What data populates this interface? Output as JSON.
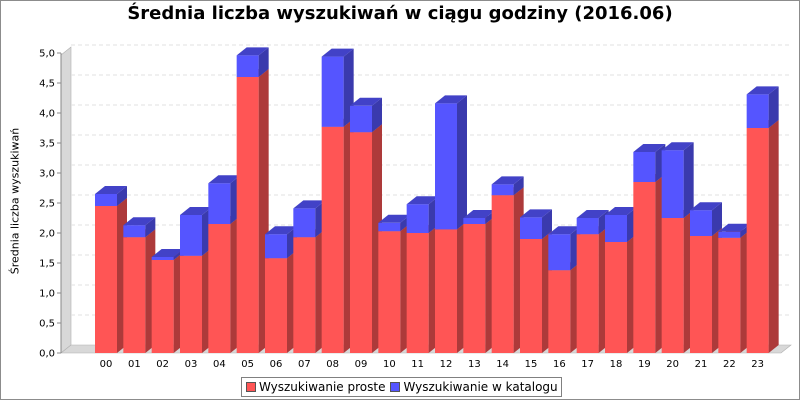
{
  "chart_data": {
    "type": "bar",
    "stacked": true,
    "three_d": true,
    "title": "Średnia liczba wyszukiwań w ciągu godziny (2016.06)",
    "xlabel": "",
    "ylabel": "Średnia liczba wyszukiwań",
    "ylim": [
      0,
      5
    ],
    "yticks": [
      "0,0",
      "0,5",
      "1,0",
      "1,5",
      "2,0",
      "2,5",
      "3,0",
      "3,5",
      "4,0",
      "4,5",
      "5,0"
    ],
    "grid": true,
    "legend_position": "bottom",
    "categories": [
      "00",
      "01",
      "02",
      "03",
      "04",
      "05",
      "06",
      "07",
      "08",
      "09",
      "10",
      "11",
      "12",
      "13",
      "14",
      "15",
      "16",
      "17",
      "18",
      "19",
      "20",
      "21",
      "22",
      "23"
    ],
    "series": [
      {
        "name": "Wyszukiwanie proste",
        "color": "#ff5555",
        "values": [
          2.45,
          1.93,
          1.55,
          1.62,
          2.15,
          4.6,
          1.58,
          1.93,
          3.77,
          3.68,
          2.03,
          2.0,
          2.06,
          2.15,
          2.63,
          1.9,
          1.38,
          1.98,
          1.85,
          2.85,
          2.25,
          1.95,
          1.92,
          3.75
        ]
      },
      {
        "name": "Wyszukiwanie w katalogu",
        "color": "#5555ff",
        "values": [
          0.2,
          0.2,
          0.05,
          0.68,
          0.68,
          0.36,
          0.4,
          0.48,
          1.17,
          0.44,
          0.14,
          0.48,
          2.1,
          0.1,
          0.18,
          0.36,
          0.6,
          0.27,
          0.45,
          0.5,
          1.13,
          0.43,
          0.1,
          0.56
        ]
      }
    ]
  }
}
